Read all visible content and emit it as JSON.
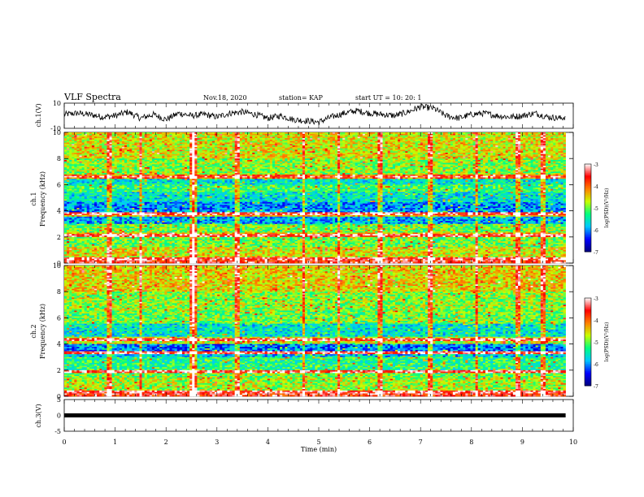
{
  "header": {
    "title": "VLF  Spectra",
    "date": "Nov.18, 2020",
    "station": "station= KAP",
    "start": "start  UT  =   10: 20: 1"
  },
  "chart_data": [
    {
      "id": "ch1-voltage",
      "type": "line",
      "ylabel": "ch.1(V)",
      "ylim": [
        -10,
        10
      ],
      "ytick_labels": [
        "10",
        "-10"
      ],
      "xlim": [
        0,
        10
      ],
      "duration_min": 9.85,
      "series": [
        {
          "x": [
            0,
            0.25,
            0.5,
            0.75,
            1,
            1.25,
            1.5,
            1.75,
            2,
            2.25,
            2.5,
            2.75,
            3,
            3.25,
            3.5,
            3.75,
            4,
            4.25,
            4.5,
            4.75,
            5,
            5.25,
            5.5,
            5.75,
            6,
            6.25,
            6.5,
            6.75,
            7,
            7.25,
            7.5,
            7.75,
            8,
            8.25,
            8.5,
            8.75,
            9,
            9.25,
            9.5,
            9.75,
            9.85
          ],
          "y": [
            1,
            2,
            1,
            -1,
            0,
            3,
            -2,
            1,
            -3,
            2,
            0,
            1,
            -1,
            2,
            3,
            1,
            -2,
            0,
            -3,
            -4,
            -5,
            -1,
            2,
            4,
            2,
            1,
            0,
            3,
            7,
            6,
            0,
            -2,
            1,
            2,
            0,
            -1,
            0,
            2,
            -1,
            -2,
            -1
          ]
        }
      ],
      "color": "#000000"
    },
    {
      "id": "ch1-spectrogram",
      "type": "heatmap",
      "ylabel": "ch.1",
      "ylabel2": "Frequency  (kHz)",
      "ylim": [
        0,
        10
      ],
      "xlim": [
        0,
        10
      ],
      "ytick_labels": [
        "0",
        "2",
        "4",
        "6",
        "8",
        "10"
      ],
      "colorbar": {
        "scale": "log",
        "label": "log(PSD)(V²/Hz)",
        "range": [
          -7,
          -3
        ],
        "tick_labels": [
          "-3",
          "-4",
          "-5",
          "-6",
          "-7"
        ],
        "colors": [
          "#00007f",
          "#0000ff",
          "#00c8ff",
          "#00ff80",
          "#c8ff00",
          "#ff8000",
          "#ff0000",
          "#ffffff"
        ]
      },
      "band_levels_by_freq_kHz": [
        [
          0.0,
          0.4,
          -3.6
        ],
        [
          0.4,
          1.2,
          -4.6
        ],
        [
          1.2,
          2.0,
          -5.0
        ],
        [
          2.0,
          2.3,
          -4.3
        ],
        [
          2.3,
          3.0,
          -5.0
        ],
        [
          3.0,
          3.6,
          -5.9
        ],
        [
          3.6,
          3.9,
          -4.4
        ],
        [
          3.9,
          4.7,
          -6.0
        ],
        [
          4.7,
          5.4,
          -5.6
        ],
        [
          5.4,
          6.0,
          -5.2
        ],
        [
          6.0,
          6.5,
          -5.6
        ],
        [
          6.5,
          6.8,
          -4.0
        ],
        [
          6.8,
          8.0,
          -4.9
        ],
        [
          8.0,
          10.0,
          -4.6
        ]
      ],
      "strong_lines_kHz": [
        0.3,
        2.1,
        3.8,
        6.6
      ],
      "burst_times_min": [
        0.9,
        1.5,
        2.5,
        2.55,
        3.4,
        4.7,
        5.4,
        6.2,
        7.2,
        8.1,
        8.9,
        9.4
      ]
    },
    {
      "id": "ch2-spectrogram",
      "type": "heatmap",
      "ylabel": "ch.2",
      "ylabel2": "Frequency  (kHz)",
      "ylim": [
        0,
        10
      ],
      "xlim": [
        0,
        10
      ],
      "ytick_labels": [
        "0",
        "2",
        "4",
        "6",
        "8",
        "10"
      ],
      "colorbar": {
        "scale": "log",
        "label": "log(PSD)(V²/Hz)",
        "range": [
          -7,
          -3
        ],
        "tick_labels": [
          "-3",
          "-4",
          "-5",
          "-6",
          "-7"
        ],
        "colors": [
          "#00007f",
          "#0000ff",
          "#00c8ff",
          "#00ff80",
          "#c8ff00",
          "#ff8000",
          "#ff0000",
          "#ffffff"
        ]
      },
      "band_levels_by_freq_kHz": [
        [
          0.0,
          0.4,
          -3.6
        ],
        [
          0.4,
          1.4,
          -4.8
        ],
        [
          1.4,
          2.0,
          -5.0
        ],
        [
          2.0,
          3.0,
          -5.3
        ],
        [
          3.0,
          3.5,
          -5.8
        ],
        [
          3.5,
          4.0,
          -6.1
        ],
        [
          4.0,
          4.6,
          -4.7
        ],
        [
          4.6,
          5.6,
          -5.6
        ],
        [
          5.6,
          6.6,
          -5.0
        ],
        [
          6.6,
          8.0,
          -4.9
        ],
        [
          8.0,
          10.0,
          -4.5
        ]
      ],
      "strong_lines_kHz": [
        0.3,
        1.9,
        3.3,
        4.3
      ],
      "burst_times_min": [
        0.9,
        1.5,
        2.5,
        2.55,
        3.4,
        4.7,
        5.4,
        6.2,
        7.2,
        8.1,
        8.9,
        9.4
      ]
    },
    {
      "id": "ch3-voltage",
      "type": "line",
      "ylabel": "ch.3(V)",
      "ylim": [
        -5,
        5
      ],
      "ytick_labels": [
        "5",
        "0",
        "-5"
      ],
      "xlim": [
        0,
        10
      ],
      "xlabel": "Time  (min)",
      "xtick_labels": [
        "0",
        "1",
        "2",
        "3",
        "4",
        "5",
        "6",
        "7",
        "8",
        "9",
        "10"
      ],
      "series": [
        {
          "x": [
            0,
            9.85
          ],
          "y": [
            0,
            0
          ]
        }
      ],
      "color": "#000000"
    }
  ]
}
